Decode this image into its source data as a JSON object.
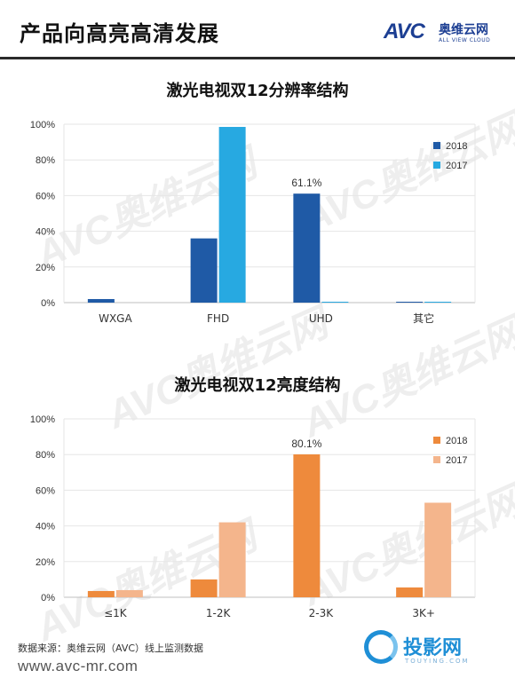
{
  "header": {
    "title": "产品向高亮高清发展",
    "logo_text": "AVC",
    "logo_cn": "奥维云网",
    "logo_en": "ALL VIEW CLOUD"
  },
  "watermark": {
    "text": "AVC奥维云网"
  },
  "chart_data": [
    {
      "type": "bar",
      "title": "激光电视双12分辨率结构",
      "categories": [
        "WXGA",
        "FHD",
        "UHD",
        "其它"
      ],
      "series": [
        {
          "name": "2018",
          "values": [
            2,
            36,
            61.1,
            0.5
          ],
          "color": "#1f5aa6"
        },
        {
          "name": "2017",
          "values": [
            0,
            98.5,
            0.5,
            0.5
          ],
          "color": "#27a9e1"
        }
      ],
      "ylim": [
        0,
        100
      ],
      "yticks": [
        "0%",
        "20%",
        "40%",
        "60%",
        "80%",
        "100%"
      ],
      "annotations": [
        {
          "category": "UHD",
          "series": "2018",
          "text": "61.1%"
        }
      ],
      "legend": "right",
      "grid": true
    },
    {
      "type": "bar",
      "title": "激光电视双12亮度结构",
      "categories": [
        "≤1K",
        "1-2K",
        "2-3K",
        "3K+"
      ],
      "series": [
        {
          "name": "2018",
          "values": [
            3.5,
            10,
            80.1,
            5.5
          ],
          "color": "#ee8a3c"
        },
        {
          "name": "2017",
          "values": [
            4,
            42,
            0,
            53
          ],
          "color": "#f4b58c"
        }
      ],
      "ylim": [
        0,
        100
      ],
      "yticks": [
        "0%",
        "20%",
        "40%",
        "60%",
        "80%",
        "100%"
      ],
      "annotations": [
        {
          "category": "2-3K",
          "series": "2018",
          "text": "80.1%"
        }
      ],
      "legend": "right",
      "grid": true
    }
  ],
  "footer": {
    "source": "数据来源：奥维云网（AVC）线上监测数据",
    "url": "www.avc-mr.com",
    "badge_text": "投影网",
    "badge_sub": "TOUYING.COM"
  }
}
